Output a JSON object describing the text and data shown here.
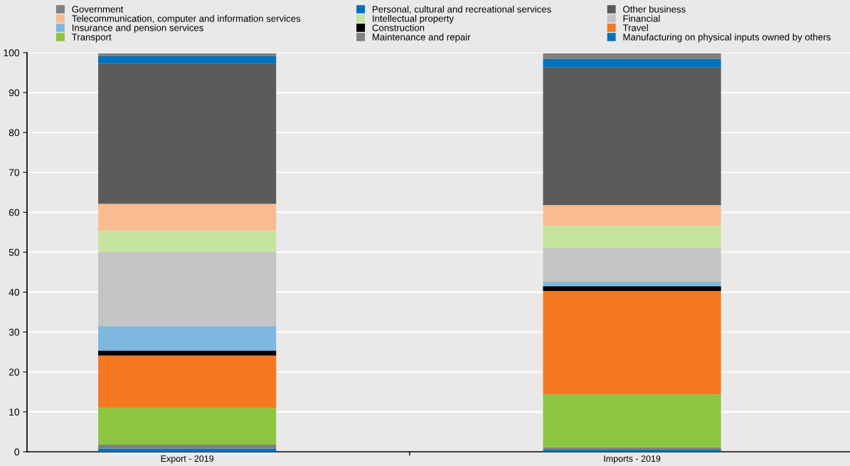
{
  "chart_data": {
    "type": "bar",
    "stacked": true,
    "categories": [
      "Export - 2019",
      "Imports - 2019"
    ],
    "ylim": [
      0,
      100
    ],
    "yticks": [
      0,
      10,
      20,
      30,
      40,
      50,
      60,
      70,
      80,
      90,
      100
    ],
    "grid": "y",
    "legend": "top",
    "series": [
      {
        "name": "Manufacturing on physical inputs owned by others",
        "color": "#0072bc",
        "values": [
          0.8,
          0.6
        ]
      },
      {
        "name": "Maintenance and repair",
        "color": "#808080",
        "values": [
          1.0,
          0.5
        ]
      },
      {
        "name": "Transport",
        "color": "#8cc641",
        "values": [
          9.2,
          13.3
        ]
      },
      {
        "name": "Travel",
        "color": "#f47920",
        "values": [
          13.1,
          25.9
        ]
      },
      {
        "name": "Construction",
        "color": "#000000",
        "values": [
          1.2,
          1.2
        ]
      },
      {
        "name": "Insurance and pension services",
        "color": "#7fb8de",
        "values": [
          6.2,
          1.1
        ]
      },
      {
        "name": "Financial",
        "color": "#c4c4c4",
        "values": [
          18.6,
          8.4
        ]
      },
      {
        "name": "Intellectual property",
        "color": "#c6e3a0",
        "values": [
          5.3,
          5.7
        ]
      },
      {
        "name": "Telecommunication, computer and information services",
        "color": "#f9bc90",
        "values": [
          6.7,
          5.1
        ]
      },
      {
        "name": "Other business",
        "color": "#5a5a5a",
        "values": [
          35.2,
          34.5
        ]
      },
      {
        "name": "Personal, cultural and recreational services",
        "color": "#0072bc",
        "values": [
          1.8,
          2.2
        ]
      },
      {
        "name": "Government",
        "color": "#808080",
        "values": [
          0.7,
          1.3
        ]
      }
    ]
  }
}
